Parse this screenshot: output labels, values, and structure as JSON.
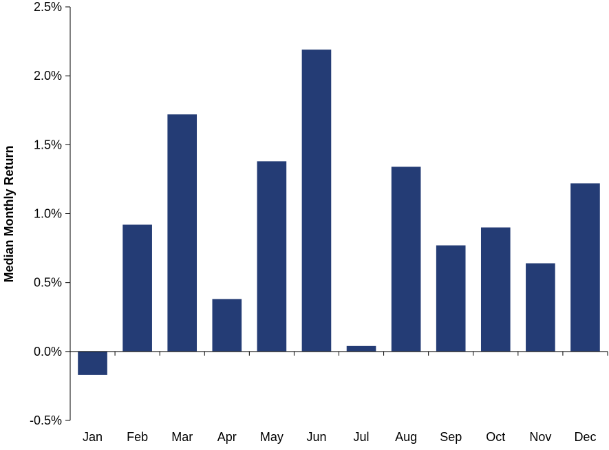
{
  "chart_data": {
    "type": "bar",
    "categories": [
      "Jan",
      "Feb",
      "Mar",
      "Apr",
      "May",
      "Jun",
      "Jul",
      "Aug",
      "Sep",
      "Oct",
      "Nov",
      "Dec"
    ],
    "values": [
      -0.17,
      0.92,
      1.72,
      0.38,
      1.38,
      2.19,
      0.04,
      1.34,
      0.77,
      0.9,
      0.64,
      1.22
    ],
    "value_unit": "%",
    "title": "",
    "xlabel": "",
    "ylabel": "Median Monthly Return",
    "ylim": [
      -0.5,
      2.5
    ],
    "yticks": [
      -0.5,
      0.0,
      0.5,
      1.0,
      1.5,
      2.0,
      2.5
    ],
    "ytick_labels": [
      "-0.5%",
      "0.0%",
      "0.5%",
      "1.0%",
      "1.5%",
      "2.0%",
      "2.5%"
    ],
    "grid": false,
    "legend": "none",
    "colors": {
      "bar": "#243C75",
      "axis": "#000000",
      "background": "#FFFFFF"
    }
  }
}
